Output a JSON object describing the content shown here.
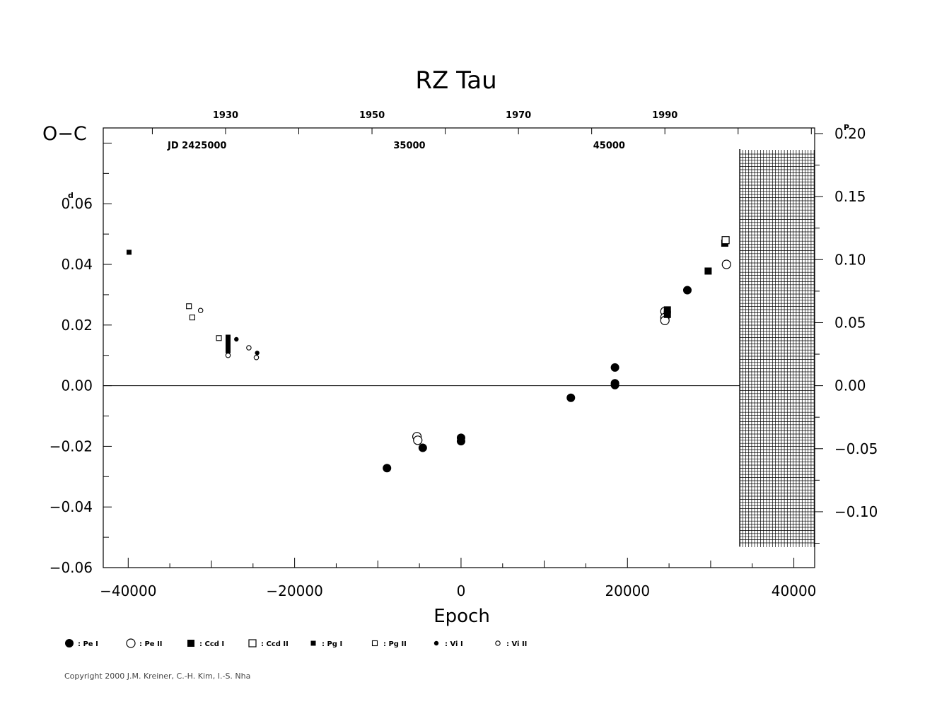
{
  "chart_data": {
    "type": "scatter",
    "title": "RZ Tau",
    "xlabel": "Epoch",
    "ylabel_left": "O−C",
    "ylabel_left_unit": "d",
    "ylabel_right_unit": "P",
    "xlim": [
      -43000,
      42500
    ],
    "ylim": [
      -0.06,
      0.085
    ],
    "x_ticks": [
      "−40000",
      "−20000",
      "0",
      "20000",
      "40000"
    ],
    "x_tick_values": [
      -40000,
      -20000,
      0,
      20000,
      40000
    ],
    "y_ticks": [
      "0.06",
      "0.04",
      "0.02",
      "0.00",
      "−0.02",
      "−0.04",
      "−0.06"
    ],
    "y_tick_values": [
      0.06,
      0.04,
      0.02,
      0.0,
      -0.02,
      -0.04,
      -0.06
    ],
    "right_ticks": [
      "0.20",
      "0.15",
      "0.10",
      "0.05",
      "0.00",
      "−0.05",
      "−0.10"
    ],
    "right_tick_values": [
      0.2,
      0.15,
      0.1,
      0.05,
      0.0,
      -0.05,
      -0.1
    ],
    "period_days": 0.4157,
    "top_axis_years": [
      "1930",
      "1950",
      "1970",
      "1990"
    ],
    "top_axis_year_epochs": [
      -28300,
      -10700,
      6900,
      24500
    ],
    "jd_label": "JD 2425000",
    "jd_ticks": [
      "35000",
      "45000"
    ],
    "jd_tick_epochs": [
      -6200,
      17800
    ],
    "hatch_region_x": [
      33500,
      42500
    ],
    "series": [
      {
        "name": "Pe I",
        "marker": "filled-circle-large",
        "points": [
          [
            -8900,
            -0.0272
          ],
          [
            -4600,
            -0.0205
          ],
          [
            0,
            -0.0172
          ],
          [
            0,
            -0.0183
          ],
          [
            13200,
            -0.004
          ],
          [
            18500,
            0.006
          ],
          [
            18500,
            0.0008
          ],
          [
            18500,
            0.0002
          ],
          [
            27200,
            0.0315
          ]
        ]
      },
      {
        "name": "Pe II",
        "marker": "open-circle-large",
        "points": [
          [
            -5300,
            -0.0168
          ],
          [
            -5200,
            -0.018
          ],
          [
            24500,
            0.0245
          ],
          [
            24500,
            0.0225
          ],
          [
            24500,
            0.0215
          ],
          [
            31900,
            0.04
          ]
        ]
      },
      {
        "name": "Ccd I",
        "marker": "filled-square-large",
        "points": [
          [
            24800,
            0.025
          ],
          [
            24800,
            0.0235
          ],
          [
            29700,
            0.0378
          ],
          [
            31700,
            0.047
          ]
        ]
      },
      {
        "name": "Ccd II",
        "marker": "open-square-large",
        "points": [
          [
            31800,
            0.048
          ]
        ]
      },
      {
        "name": "Pg I",
        "marker": "filled-square-small",
        "points": [
          [
            -39900,
            0.044
          ],
          [
            -28000,
            0.016
          ],
          [
            -28000,
            0.0145
          ],
          [
            -28000,
            0.013
          ],
          [
            -28000,
            0.0115
          ]
        ]
      },
      {
        "name": "Pg II",
        "marker": "open-square-small",
        "points": [
          [
            -32700,
            0.0262
          ],
          [
            -32300,
            0.0225
          ],
          [
            -29100,
            0.0157
          ]
        ]
      },
      {
        "name": "Vi I",
        "marker": "filled-circle-small",
        "points": [
          [
            -27000,
            0.0153
          ],
          [
            -24500,
            0.0108
          ],
          [
            -28000,
            0.012
          ]
        ]
      },
      {
        "name": "Vi II",
        "marker": "open-circle-small",
        "points": [
          [
            -31300,
            0.0248
          ],
          [
            -25500,
            0.0125
          ],
          [
            -24600,
            0.0093
          ],
          [
            -28000,
            0.01
          ]
        ]
      }
    ]
  },
  "legend_items": [
    {
      "symbol": "filled-circle-large",
      "label": ": Pe I"
    },
    {
      "symbol": "open-circle-large",
      "label": ": Pe II"
    },
    {
      "symbol": "filled-square-large",
      "label": ": Ccd I"
    },
    {
      "symbol": "open-square-large",
      "label": ": Ccd II"
    },
    {
      "symbol": "filled-square-small",
      "label": ": Pg I"
    },
    {
      "symbol": "open-square-small",
      "label": ": Pg II"
    },
    {
      "symbol": "filled-circle-small",
      "label": ": Vi I"
    },
    {
      "symbol": "open-circle-small",
      "label": ": Vi II"
    }
  ],
  "copyright": "Copyright 2000 J.M. Kreiner, C.-H. Kim, I.-S. Nha"
}
